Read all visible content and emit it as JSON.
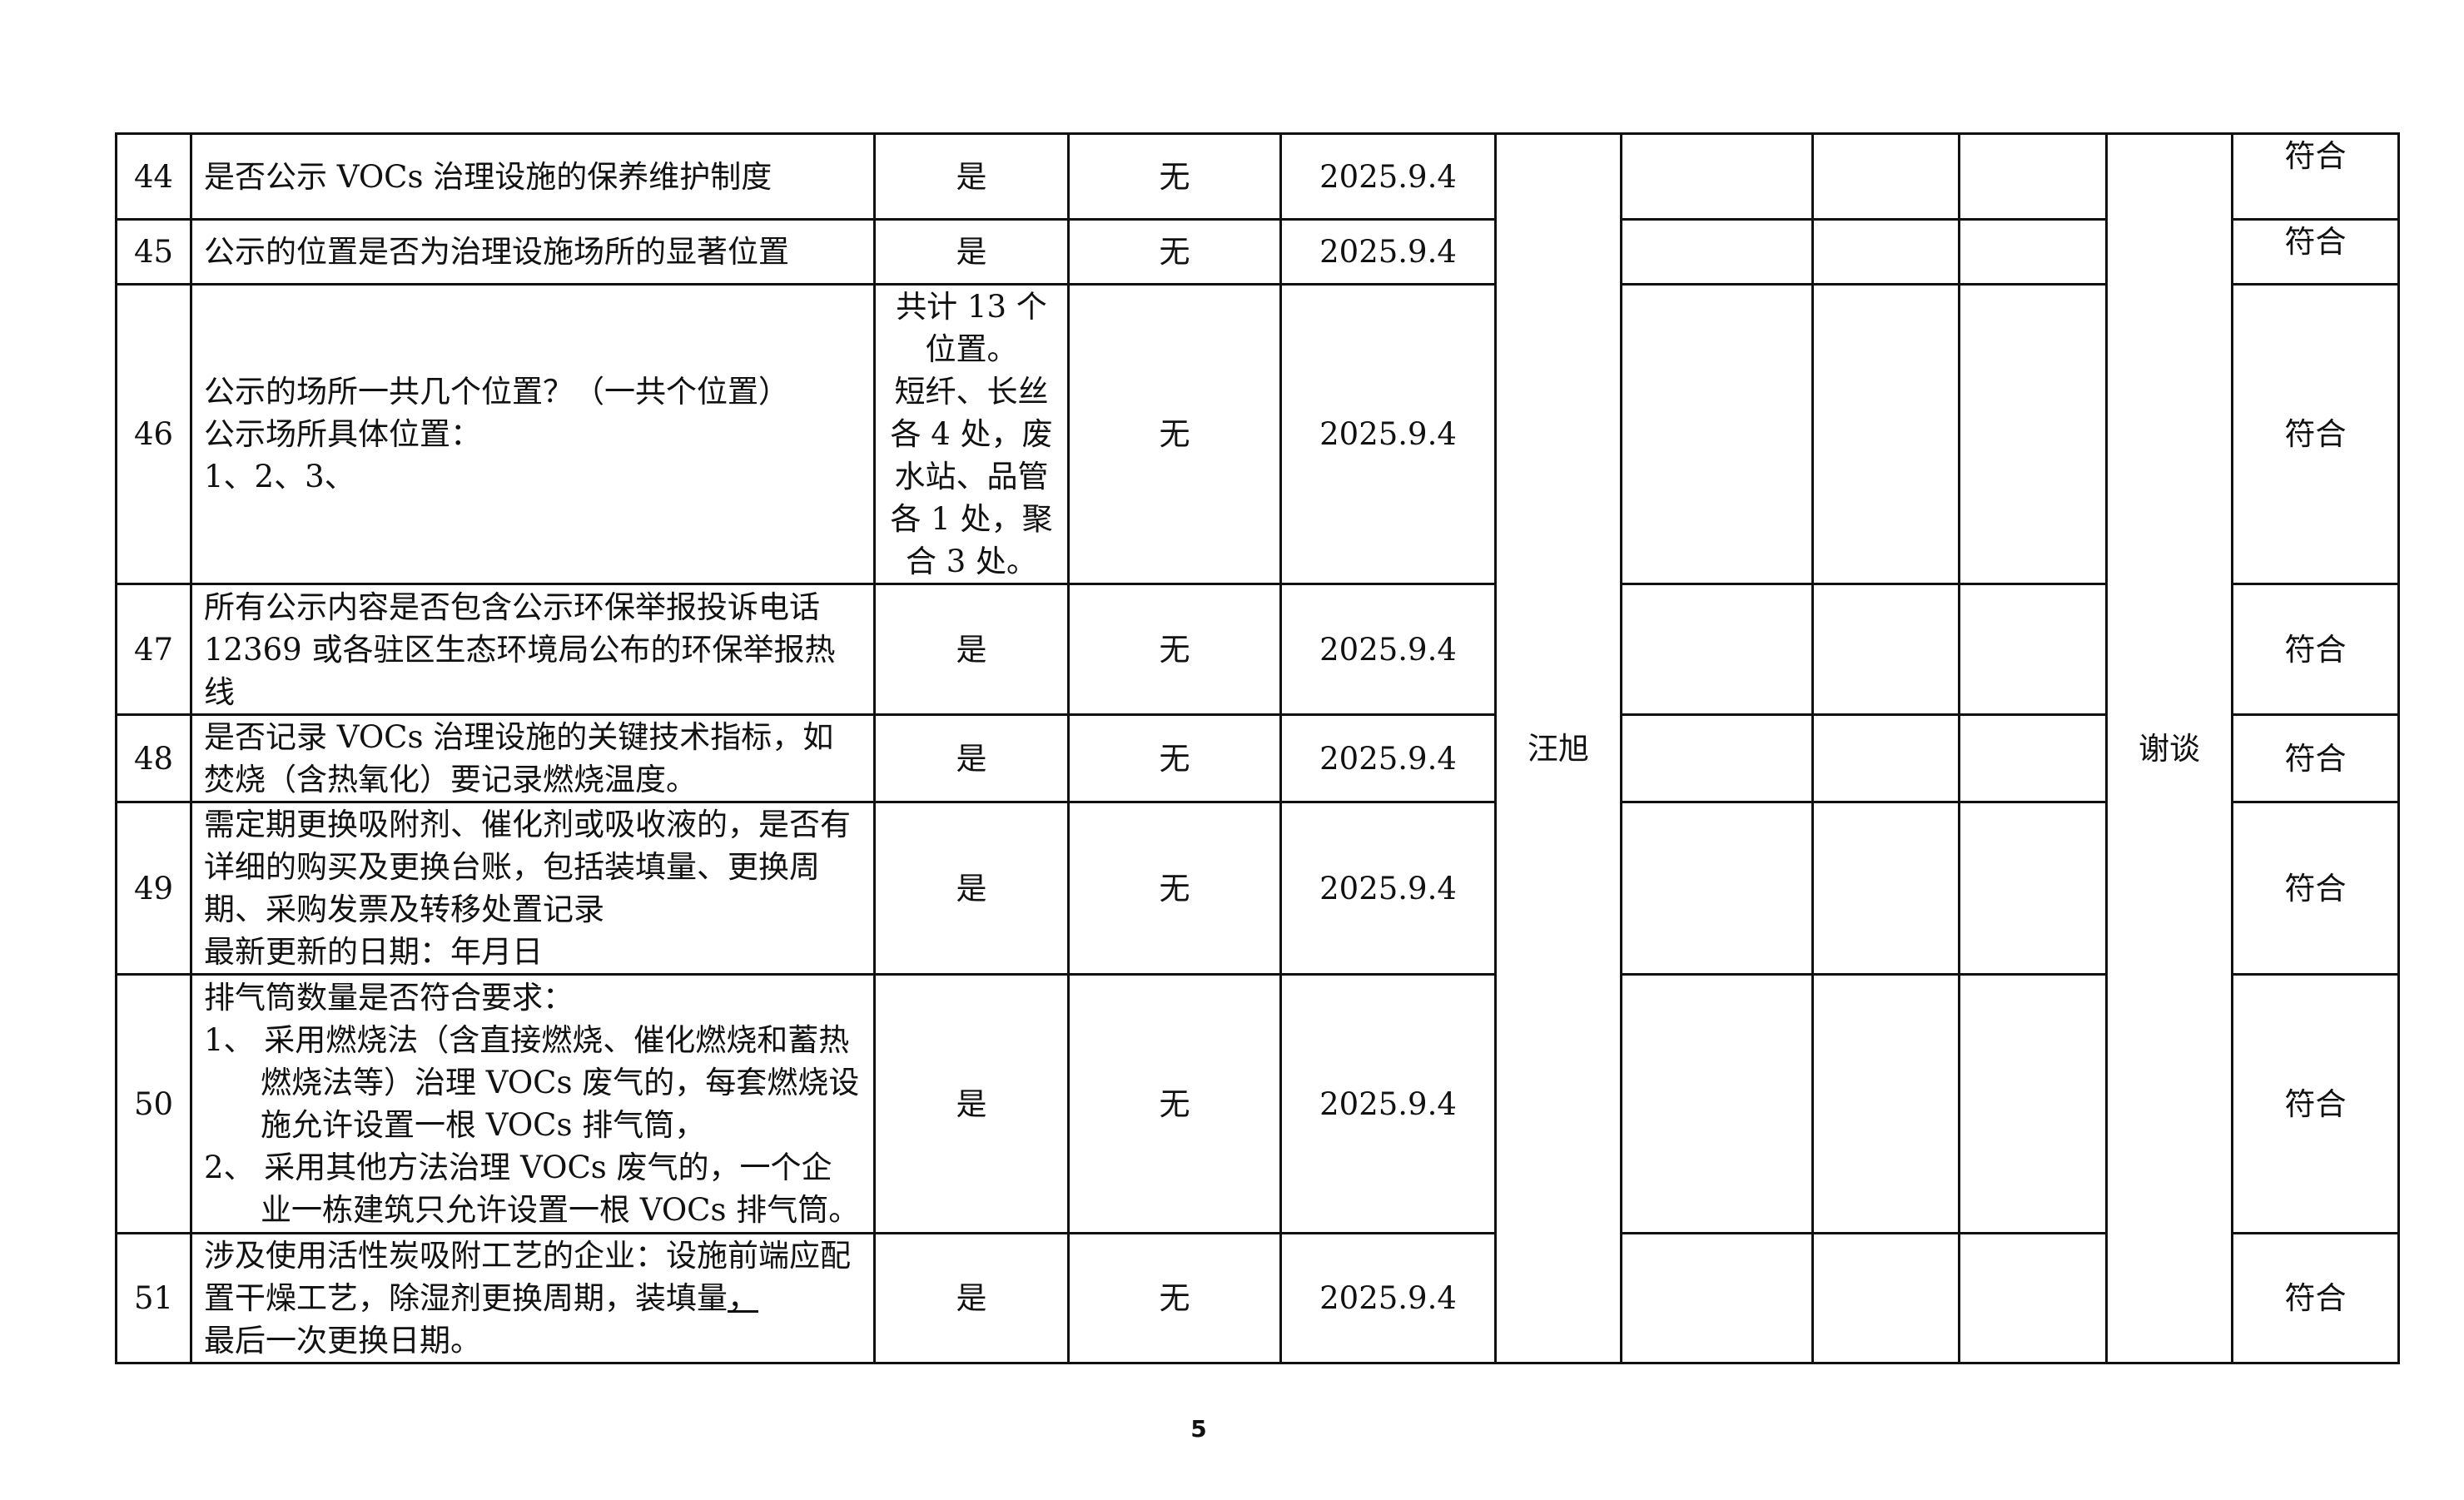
{
  "rows": [
    {
      "no": "44",
      "item": [
        "是否公示 VOCs 治理设施的保养维护制度"
      ],
      "answer": [
        "是"
      ],
      "issue": "无",
      "date": "2025.9.4",
      "result": "符合"
    },
    {
      "no": "45",
      "item": [
        "公示的位置是否为治理设施场所的显著位置"
      ],
      "answer": [
        "是"
      ],
      "issue": "无",
      "date": "2025.9.4",
      "result": "符合"
    },
    {
      "no": "46",
      "item": [
        "公示的场所一共几个位置？（一共个位置）",
        "公示场所具体位置：",
        "1、2、3、"
      ],
      "answer": [
        "共计 13 个",
        "位置。",
        "短纤、长丝",
        "各 4 处，废",
        "水站、品管",
        "各 1 处，聚",
        "合 3 处。"
      ],
      "issue": "无",
      "date": "2025.9.4",
      "result": "符合"
    },
    {
      "no": "47",
      "item": [
        "所有公示内容是否包含公示环保举报投诉电话 12369 或各驻区生态环境局公布的环保举报热线"
      ],
      "answer": [
        "是"
      ],
      "issue": "无",
      "date": "2025.9.4",
      "result": "符合"
    },
    {
      "no": "48",
      "item": [
        "是否记录 VOCs 治理设施的关键技术指标，如焚烧（含热氧化）要记录燃烧温度。"
      ],
      "answer": [
        "是"
      ],
      "issue": "无",
      "date": "2025.9.4",
      "result": "符合"
    },
    {
      "no": "49",
      "item": [
        "需定期更换吸附剂、催化剂或吸收液的，是否有详细的购买及更换台账，包括装填量、更换周期、采购发票及转移处置记录",
        "最新更新的日期：年月日"
      ],
      "answer": [
        "是"
      ],
      "issue": "无",
      "date": "2025.9.4",
      "result": "符合"
    },
    {
      "no": "50",
      "item": [
        "排气筒数量是否符合要求：",
        "1、 采用燃烧法（含直接燃烧、催化燃烧和蓄热燃烧法等）治理 VOCs 废气的，每套燃烧设施允许设置一根 VOCs 排气筒，",
        "2、 采用其他方法治理 VOCs 废气的，一个企业一栋建筑只允许设置一根 VOCs 排气筒。"
      ],
      "answer": [
        "是"
      ],
      "issue": "无",
      "date": "2025.9.4",
      "result": "符合"
    },
    {
      "no": "51",
      "item": [
        "涉及使用活性炭吸附工艺的企业：设施前端应配置干燥工艺，除湿剂更换周期，装填量",
        "，",
        "最后一次更换日期。"
      ],
      "answer": [
        "是"
      ],
      "issue": "无",
      "date": "2025.9.4",
      "result": "符合"
    }
  ],
  "inspector": "汪旭",
  "method": "谢谈",
  "page_number": "5"
}
